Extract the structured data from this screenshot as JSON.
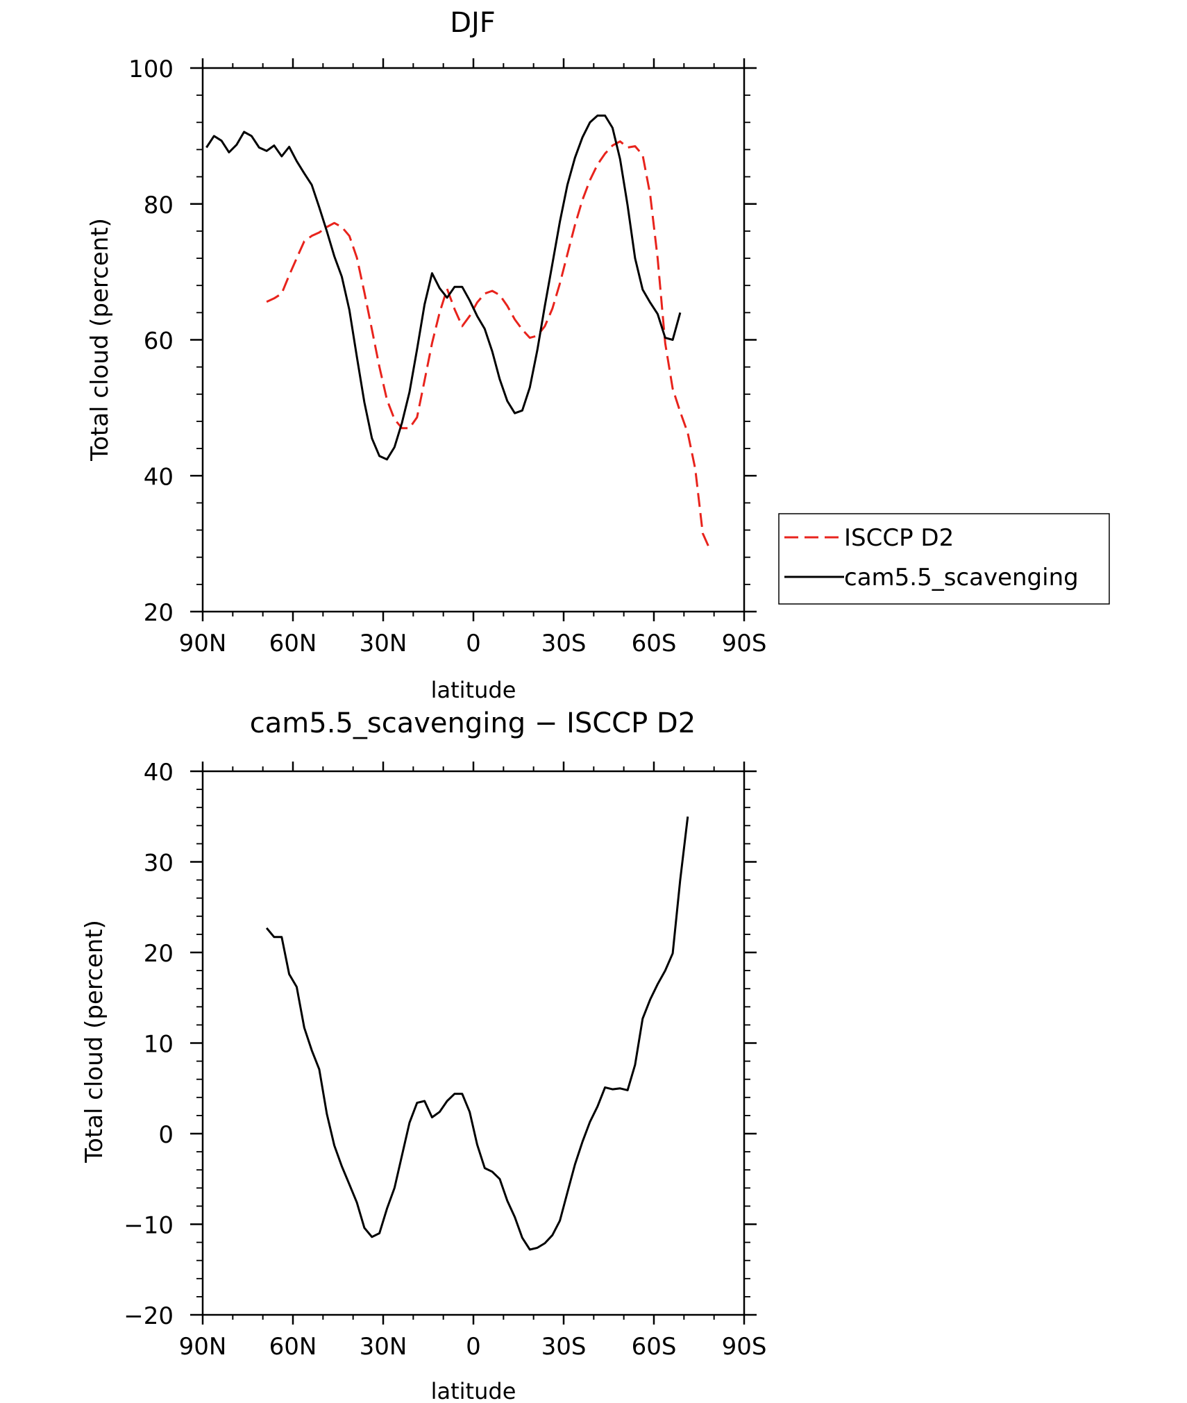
{
  "chart_data": [
    {
      "type": "line",
      "title": "DJF",
      "xlabel": "latitude",
      "ylabel": "Total cloud (percent)",
      "xlim": [
        90,
        -90
      ],
      "ylim": [
        20,
        100
      ],
      "x_unit": "degrees latitude (positive = N)",
      "xticks": [
        {
          "value": 90,
          "label": "90N"
        },
        {
          "value": 60,
          "label": "60N"
        },
        {
          "value": 30,
          "label": "30N"
        },
        {
          "value": 0,
          "label": "0"
        },
        {
          "value": -30,
          "label": "30S"
        },
        {
          "value": -60,
          "label": "60S"
        },
        {
          "value": -90,
          "label": "90S"
        }
      ],
      "yticks": [
        {
          "value": 20,
          "label": "20"
        },
        {
          "value": 40,
          "label": "40"
        },
        {
          "value": 60,
          "label": "60"
        },
        {
          "value": 80,
          "label": "80"
        },
        {
          "value": 100,
          "label": "100"
        }
      ],
      "legend_position": "right",
      "series": [
        {
          "name": "ISCCP D2",
          "color": "#e8231c",
          "dash": "dashed",
          "points": [
            [
              68.75,
              65.6
            ],
            [
              66.25,
              66.1
            ],
            [
              63.75,
              66.8
            ],
            [
              61.25,
              69.5
            ],
            [
              58.75,
              72
            ],
            [
              56.25,
              74.5
            ],
            [
              53.75,
              75.3
            ],
            [
              51.25,
              75.8
            ],
            [
              48.75,
              76.6
            ],
            [
              46.25,
              77.2
            ],
            [
              43.75,
              76.6
            ],
            [
              41.25,
              75.3
            ],
            [
              38.75,
              72.1
            ],
            [
              36.25,
              67
            ],
            [
              33.75,
              61.5
            ],
            [
              31.25,
              56
            ],
            [
              28.75,
              51.2
            ],
            [
              26.25,
              48.3
            ],
            [
              23.75,
              47
            ],
            [
              21.25,
              47
            ],
            [
              18.75,
              48.6
            ],
            [
              16.25,
              54
            ],
            [
              13.75,
              59.5
            ],
            [
              11.25,
              64
            ],
            [
              8.75,
              67.5
            ],
            [
              6.25,
              64.5
            ],
            [
              3.75,
              62
            ],
            [
              1.25,
              63.5
            ],
            [
              -1.25,
              65.5
            ],
            [
              -3.75,
              66.8
            ],
            [
              -6.25,
              67.2
            ],
            [
              -8.75,
              66.6
            ],
            [
              -11.25,
              65
            ],
            [
              -13.75,
              63
            ],
            [
              -16.25,
              61.5
            ],
            [
              -18.75,
              60.3
            ],
            [
              -21.25,
              60.6
            ],
            [
              -23.75,
              62
            ],
            [
              -26.25,
              64.6
            ],
            [
              -28.75,
              68.3
            ],
            [
              -31.25,
              72.6
            ],
            [
              -33.75,
              76.9
            ],
            [
              -36.25,
              80.6
            ],
            [
              -38.75,
              83.5
            ],
            [
              -41.25,
              85.8
            ],
            [
              -43.75,
              87.4
            ],
            [
              -46.25,
              88.6
            ],
            [
              -48.75,
              89.2
            ],
            [
              -51.25,
              88.3
            ],
            [
              -53.75,
              88.5
            ],
            [
              -56.25,
              87.2
            ],
            [
              -58.75,
              81.4
            ],
            [
              -61.25,
              72
            ],
            [
              -63.75,
              59.5
            ],
            [
              -66.25,
              52.8
            ],
            [
              -68.75,
              49.4
            ],
            [
              -71.25,
              46.3
            ],
            [
              -73.75,
              41
            ],
            [
              -76.25,
              31.5
            ],
            [
              -78.75,
              29
            ]
          ]
        },
        {
          "name": "cam5.5_scavenging",
          "color": "#000000",
          "dash": "solid",
          "points": [
            [
              88.75,
              88.3
            ],
            [
              86.25,
              90
            ],
            [
              83.75,
              89.3
            ],
            [
              81.25,
              87.6
            ],
            [
              78.75,
              88.7
            ],
            [
              76.25,
              90.6
            ],
            [
              73.75,
              90
            ],
            [
              71.25,
              88.3
            ],
            [
              68.75,
              87.8
            ],
            [
              66.25,
              88.6
            ],
            [
              63.75,
              87
            ],
            [
              61.25,
              88.4
            ],
            [
              58.75,
              86.3
            ],
            [
              56.25,
              84.5
            ],
            [
              53.75,
              82.8
            ],
            [
              51.25,
              79.5
            ],
            [
              48.75,
              76
            ],
            [
              46.25,
              72.3
            ],
            [
              43.75,
              69.3
            ],
            [
              41.25,
              64.4
            ],
            [
              38.75,
              57.5
            ],
            [
              36.25,
              50.8
            ],
            [
              33.75,
              45.5
            ],
            [
              31.25,
              42.9
            ],
            [
              28.75,
              42.4
            ],
            [
              26.25,
              44.2
            ],
            [
              23.75,
              47.8
            ],
            [
              21.25,
              52.3
            ],
            [
              18.75,
              58.6
            ],
            [
              16.25,
              65.2
            ],
            [
              13.75,
              69.8
            ],
            [
              11.25,
              67.6
            ],
            [
              8.75,
              66.2
            ],
            [
              6.25,
              67.8
            ],
            [
              3.75,
              67.8
            ],
            [
              1.25,
              65.8
            ],
            [
              -1.25,
              63.5
            ],
            [
              -3.75,
              61.6
            ],
            [
              -6.25,
              58.3
            ],
            [
              -8.75,
              54.2
            ],
            [
              -11.25,
              51
            ],
            [
              -13.75,
              49.2
            ],
            [
              -16.25,
              49.6
            ],
            [
              -18.75,
              53
            ],
            [
              -21.25,
              58.5
            ],
            [
              -23.75,
              65
            ],
            [
              -26.25,
              71.2
            ],
            [
              -28.75,
              77.4
            ],
            [
              -31.25,
              82.8
            ],
            [
              -33.75,
              86.8
            ],
            [
              -36.25,
              89.8
            ],
            [
              -38.75,
              92
            ],
            [
              -41.25,
              93
            ],
            [
              -43.75,
              93
            ],
            [
              -46.25,
              91.2
            ],
            [
              -48.75,
              86.6
            ],
            [
              -51.25,
              79.8
            ],
            [
              -53.75,
              72
            ],
            [
              -56.25,
              67.4
            ],
            [
              -58.75,
              65.5
            ],
            [
              -61.25,
              63.8
            ],
            [
              -63.75,
              60.3
            ],
            [
              -66.25,
              60
            ],
            [
              -68.75,
              64
            ]
          ]
        }
      ]
    },
    {
      "type": "line",
      "title": "cam5.5_scavenging − ISCCP D2",
      "xlabel": "latitude",
      "ylabel": "Total cloud (percent)",
      "xlim": [
        90,
        -90
      ],
      "ylim": [
        -20,
        40
      ],
      "x_unit": "degrees latitude (positive = N)",
      "xticks": [
        {
          "value": 90,
          "label": "90N"
        },
        {
          "value": 60,
          "label": "60N"
        },
        {
          "value": 30,
          "label": "30N"
        },
        {
          "value": 0,
          "label": "0"
        },
        {
          "value": -30,
          "label": "30S"
        },
        {
          "value": -60,
          "label": "60S"
        },
        {
          "value": -90,
          "label": "90S"
        }
      ],
      "yticks": [
        {
          "value": -20,
          "label": "−20"
        },
        {
          "value": -10,
          "label": "−10"
        },
        {
          "value": 0,
          "label": "0"
        },
        {
          "value": 10,
          "label": "10"
        },
        {
          "value": 20,
          "label": "20"
        },
        {
          "value": 30,
          "label": "30"
        },
        {
          "value": 40,
          "label": "40"
        }
      ],
      "series": [
        {
          "color": "#000000",
          "dash": "solid",
          "points": [
            [
              68.75,
              22.7
            ],
            [
              66.25,
              21.7
            ],
            [
              63.75,
              21.7
            ],
            [
              61.25,
              17.6
            ],
            [
              58.75,
              16.2
            ],
            [
              56.25,
              11.7
            ],
            [
              53.75,
              9.2
            ],
            [
              51.25,
              7.1
            ],
            [
              48.75,
              2.2
            ],
            [
              46.25,
              -1.3
            ],
            [
              43.75,
              -3.6
            ],
            [
              41.25,
              -5.6
            ],
            [
              38.75,
              -7.6
            ],
            [
              36.25,
              -10.4
            ],
            [
              33.75,
              -11.4
            ],
            [
              31.25,
              -11
            ],
            [
              28.75,
              -8.3
            ],
            [
              26.25,
              -6
            ],
            [
              23.75,
              -2.4
            ],
            [
              21.25,
              1.2
            ],
            [
              18.75,
              3.4
            ],
            [
              16.25,
              3.6
            ],
            [
              13.75,
              1.8
            ],
            [
              11.25,
              2.4
            ],
            [
              8.75,
              3.6
            ],
            [
              6.25,
              4.4
            ],
            [
              3.75,
              4.4
            ],
            [
              1.25,
              2.4
            ],
            [
              -1.25,
              -1.2
            ],
            [
              -3.75,
              -3.8
            ],
            [
              -6.25,
              -4.2
            ],
            [
              -8.75,
              -5
            ],
            [
              -11.25,
              -7.4
            ],
            [
              -13.75,
              -9.2
            ],
            [
              -16.25,
              -11.5
            ],
            [
              -18.75,
              -12.8
            ],
            [
              -21.25,
              -12.6
            ],
            [
              -23.75,
              -12.1
            ],
            [
              -26.25,
              -11.2
            ],
            [
              -28.75,
              -9.6
            ],
            [
              -31.25,
              -6.5
            ],
            [
              -33.75,
              -3.4
            ],
            [
              -36.25,
              -0.9
            ],
            [
              -38.75,
              1.3
            ],
            [
              -41.25,
              3
            ],
            [
              -43.75,
              5.1
            ],
            [
              -46.25,
              4.9
            ],
            [
              -48.75,
              5
            ],
            [
              -51.25,
              4.8
            ],
            [
              -53.75,
              7.6
            ],
            [
              -56.25,
              12.7
            ],
            [
              -58.75,
              14.8
            ],
            [
              -61.25,
              16.5
            ],
            [
              -63.75,
              18
            ],
            [
              -66.25,
              19.9
            ],
            [
              -68.75,
              28
            ],
            [
              -71.25,
              35
            ]
          ]
        }
      ]
    }
  ]
}
